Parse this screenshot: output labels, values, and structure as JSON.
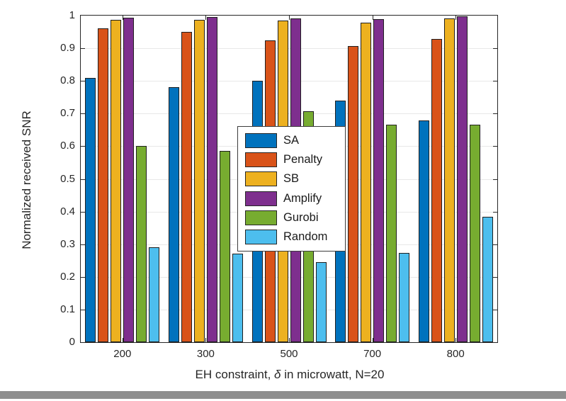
{
  "figure": {
    "background": "#ffffff",
    "bottom_bar_color": "#8f8f8f",
    "axis_color": "#262626",
    "grid_color": "#e8e8e8"
  },
  "chart_data": {
    "type": "bar",
    "title": "",
    "xlabel": "EH constraint, δ in microwatt, N=20",
    "xlabel_parts": {
      "pre": "EH constraint, ",
      "delta": "δ",
      "post": " in microwatt, N=20"
    },
    "ylabel": "Normalized received SNR",
    "categories": [
      "200",
      "300",
      "500",
      "700",
      "800"
    ],
    "series": [
      {
        "name": "SA",
        "color": "#0072BD",
        "values": [
          0.81,
          0.78,
          0.8,
          0.74,
          0.68
        ]
      },
      {
        "name": "Penalty",
        "color": "#D95319",
        "values": [
          0.96,
          0.95,
          0.925,
          0.907,
          0.928
        ]
      },
      {
        "name": "SB",
        "color": "#EDB120",
        "values": [
          0.986,
          0.986,
          0.985,
          0.978,
          0.991
        ]
      },
      {
        "name": "Amplify",
        "color": "#7E2F8E",
        "values": [
          0.993,
          0.995,
          0.992,
          0.989,
          0.997
        ]
      },
      {
        "name": "Gurobi",
        "color": "#77AC30",
        "values": [
          0.601,
          0.586,
          0.707,
          0.665,
          0.665
        ]
      },
      {
        "name": "Random",
        "color": "#4DBEEE",
        "values": [
          0.29,
          0.271,
          0.246,
          0.274,
          0.384
        ]
      }
    ],
    "ylim": [
      0,
      1
    ],
    "yticks": [
      0,
      0.1,
      0.2,
      0.3,
      0.4,
      0.5,
      0.6,
      0.7,
      0.8,
      0.9,
      1
    ],
    "ytick_labels": [
      "0",
      "0.1",
      "0.2",
      "0.3",
      "0.4",
      "0.5",
      "0.6",
      "0.7",
      "0.8",
      "0.9",
      "1"
    ],
    "grid": true,
    "legend_position": "center"
  }
}
